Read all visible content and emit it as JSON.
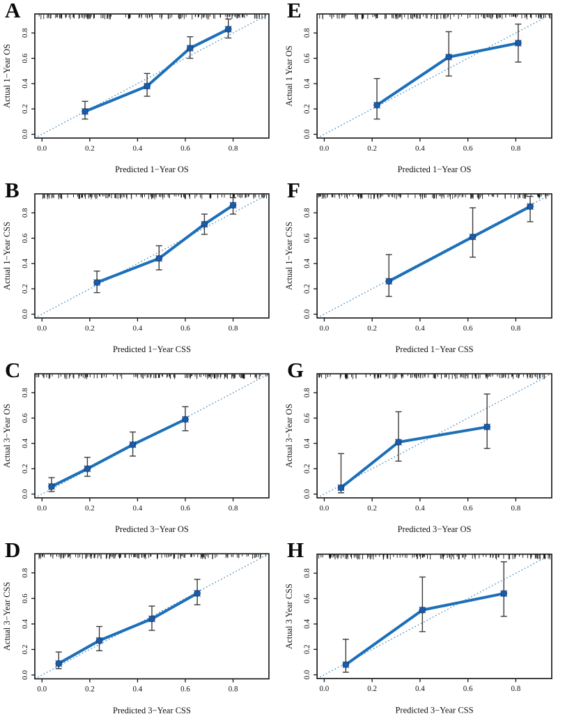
{
  "page": {
    "background": "#ffffff",
    "layout": "4x2 grid of calibration plots"
  },
  "style": {
    "line_color": "#1c6fb8",
    "point_color": "#1b5ca8",
    "point_stroke": "#123f7d",
    "errorbar_color": "#3a3a3a",
    "diagonal_color": "#4a8ec2",
    "axis_color": "#111111",
    "text_color": "#111111"
  },
  "chart_data": [
    {
      "id": "A",
      "label": "A",
      "type": "line",
      "subtype": "calibration",
      "xlabel": "Predicted 1−Year OS",
      "ylabel": "Actual 1−Year OS",
      "xticks": [
        0.0,
        0.2,
        0.4,
        0.6,
        0.8
      ],
      "yticks": [
        0.0,
        0.2,
        0.4,
        0.6,
        0.8
      ],
      "xlim": [
        -0.03,
        0.95
      ],
      "ylim": [
        -0.03,
        0.95
      ],
      "diagonal": true,
      "rug": true,
      "grid": false,
      "legend": "none",
      "points": [
        {
          "x": 0.18,
          "y": 0.18,
          "lo": 0.12,
          "hi": 0.26
        },
        {
          "x": 0.44,
          "y": 0.38,
          "lo": 0.3,
          "hi": 0.48
        },
        {
          "x": 0.62,
          "y": 0.68,
          "lo": 0.6,
          "hi": 0.77
        },
        {
          "x": 0.78,
          "y": 0.83,
          "lo": 0.76,
          "hi": 0.91
        }
      ]
    },
    {
      "id": "E",
      "label": "E",
      "type": "line",
      "subtype": "calibration",
      "xlabel": "Predicted 1−Year OS",
      "ylabel": "Actual 1  Year OS",
      "xticks": [
        0.0,
        0.2,
        0.4,
        0.6,
        0.8
      ],
      "yticks": [
        0.0,
        0.2,
        0.4,
        0.6,
        0.8
      ],
      "xlim": [
        -0.03,
        0.95
      ],
      "ylim": [
        -0.03,
        0.95
      ],
      "diagonal": true,
      "rug": true,
      "grid": false,
      "legend": "none",
      "points": [
        {
          "x": 0.22,
          "y": 0.23,
          "lo": 0.12,
          "hi": 0.44
        },
        {
          "x": 0.52,
          "y": 0.61,
          "lo": 0.46,
          "hi": 0.81
        },
        {
          "x": 0.81,
          "y": 0.72,
          "lo": 0.57,
          "hi": 0.87
        }
      ]
    },
    {
      "id": "B",
      "label": "B",
      "type": "line",
      "subtype": "calibration",
      "xlabel": "Predicted 1−Year CSS",
      "ylabel": "Actual 1−Year CSS",
      "xticks": [
        0.0,
        0.2,
        0.4,
        0.6,
        0.8
      ],
      "yticks": [
        0.0,
        0.2,
        0.4,
        0.6,
        0.8
      ],
      "xlim": [
        -0.03,
        0.95
      ],
      "ylim": [
        -0.03,
        0.95
      ],
      "diagonal": true,
      "rug": true,
      "grid": false,
      "legend": "none",
      "points": [
        {
          "x": 0.23,
          "y": 0.25,
          "lo": 0.17,
          "hi": 0.34
        },
        {
          "x": 0.49,
          "y": 0.44,
          "lo": 0.35,
          "hi": 0.54
        },
        {
          "x": 0.68,
          "y": 0.71,
          "lo": 0.63,
          "hi": 0.79
        },
        {
          "x": 0.8,
          "y": 0.86,
          "lo": 0.79,
          "hi": 0.92
        }
      ]
    },
    {
      "id": "F",
      "label": "F",
      "type": "line",
      "subtype": "calibration",
      "xlabel": "Predicted 1−Year CSS",
      "ylabel": "Actual 1−Year CSS",
      "xticks": [
        0.0,
        0.2,
        0.4,
        0.6,
        0.8
      ],
      "yticks": [
        0.0,
        0.2,
        0.4,
        0.6,
        0.8
      ],
      "xlim": [
        -0.03,
        0.95
      ],
      "ylim": [
        -0.03,
        0.95
      ],
      "diagonal": true,
      "rug": true,
      "grid": false,
      "legend": "none",
      "points": [
        {
          "x": 0.27,
          "y": 0.26,
          "lo": 0.14,
          "hi": 0.47
        },
        {
          "x": 0.62,
          "y": 0.61,
          "lo": 0.45,
          "hi": 0.84
        },
        {
          "x": 0.86,
          "y": 0.85,
          "lo": 0.73,
          "hi": 0.93
        }
      ]
    },
    {
      "id": "C",
      "label": "C",
      "type": "line",
      "subtype": "calibration",
      "xlabel": "Predicted 3−Year OS",
      "ylabel": "Actual 3−Year OS",
      "xticks": [
        0.0,
        0.2,
        0.4,
        0.6,
        0.8
      ],
      "yticks": [
        0.0,
        0.2,
        0.4,
        0.6,
        0.8
      ],
      "xlim": [
        -0.03,
        0.95
      ],
      "ylim": [
        -0.03,
        0.95
      ],
      "diagonal": true,
      "rug": true,
      "grid": false,
      "legend": "none",
      "points": [
        {
          "x": 0.04,
          "y": 0.06,
          "lo": 0.02,
          "hi": 0.13
        },
        {
          "x": 0.19,
          "y": 0.2,
          "lo": 0.14,
          "hi": 0.29
        },
        {
          "x": 0.38,
          "y": 0.39,
          "lo": 0.3,
          "hi": 0.49
        },
        {
          "x": 0.6,
          "y": 0.59,
          "lo": 0.5,
          "hi": 0.69
        }
      ]
    },
    {
      "id": "G",
      "label": "G",
      "type": "line",
      "subtype": "calibration",
      "xlabel": "Predicted 3−Year OS",
      "ylabel": "Actual 3−Year OS",
      "xticks": [
        0.0,
        0.2,
        0.4,
        0.6,
        0.8
      ],
      "yticks": [
        0.0,
        0.2,
        0.4,
        0.6,
        0.8
      ],
      "xlim": [
        -0.03,
        0.95
      ],
      "ylim": [
        -0.03,
        0.95
      ],
      "diagonal": true,
      "rug": true,
      "grid": false,
      "legend": "none",
      "points": [
        {
          "x": 0.07,
          "y": 0.05,
          "lo": 0.01,
          "hi": 0.32
        },
        {
          "x": 0.31,
          "y": 0.41,
          "lo": 0.26,
          "hi": 0.65
        },
        {
          "x": 0.68,
          "y": 0.53,
          "lo": 0.36,
          "hi": 0.79
        }
      ]
    },
    {
      "id": "D",
      "label": "D",
      "type": "line",
      "subtype": "calibration",
      "xlabel": "Predicted 3−Year CSS",
      "ylabel": "Actual 3−Year CSS",
      "xticks": [
        0.0,
        0.2,
        0.4,
        0.6,
        0.8
      ],
      "yticks": [
        0.0,
        0.2,
        0.4,
        0.6,
        0.8
      ],
      "xlim": [
        -0.03,
        0.95
      ],
      "ylim": [
        -0.03,
        0.95
      ],
      "diagonal": true,
      "rug": true,
      "grid": false,
      "legend": "none",
      "points": [
        {
          "x": 0.07,
          "y": 0.09,
          "lo": 0.05,
          "hi": 0.18
        },
        {
          "x": 0.24,
          "y": 0.27,
          "lo": 0.19,
          "hi": 0.38
        },
        {
          "x": 0.46,
          "y": 0.44,
          "lo": 0.35,
          "hi": 0.54
        },
        {
          "x": 0.65,
          "y": 0.64,
          "lo": 0.55,
          "hi": 0.75
        }
      ]
    },
    {
      "id": "H",
      "label": "H",
      "type": "line",
      "subtype": "calibration",
      "xlabel": "Predicted 3−Year CSS",
      "ylabel": "Actual 3  Year CSS",
      "xticks": [
        0.0,
        0.2,
        0.4,
        0.6,
        0.8
      ],
      "yticks": [
        0.0,
        0.2,
        0.4,
        0.6,
        0.8
      ],
      "xlim": [
        -0.03,
        0.95
      ],
      "ylim": [
        -0.03,
        0.95
      ],
      "diagonal": true,
      "rug": true,
      "grid": false,
      "legend": "none",
      "points": [
        {
          "x": 0.09,
          "y": 0.08,
          "lo": 0.02,
          "hi": 0.28
        },
        {
          "x": 0.41,
          "y": 0.51,
          "lo": 0.34,
          "hi": 0.77
        },
        {
          "x": 0.75,
          "y": 0.64,
          "lo": 0.46,
          "hi": 0.89
        }
      ]
    }
  ]
}
